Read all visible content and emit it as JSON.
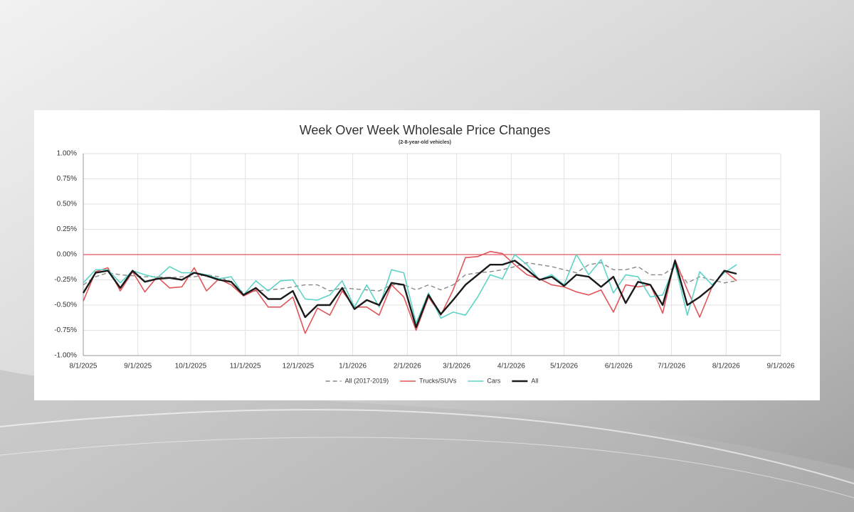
{
  "chart_data": {
    "type": "line",
    "title": "Week Over Week Wholesale Price Changes",
    "subtitle": "(2-8-year-old vehicles)",
    "x": [
      "8/1/2025",
      "8/8/2025",
      "8/15/2025",
      "8/22/2025",
      "8/29/2025",
      "9/5/2025",
      "9/12/2025",
      "9/19/2025",
      "9/26/2025",
      "10/3/2025",
      "10/10/2025",
      "10/17/2025",
      "10/24/2025",
      "10/31/2025",
      "11/7/2025",
      "11/14/2025",
      "11/21/2025",
      "11/28/2025",
      "12/5/2025",
      "12/12/2025",
      "12/19/2025",
      "12/26/2025",
      "1/2/2026",
      "1/9/2026",
      "1/16/2026",
      "1/23/2026",
      "1/30/2026",
      "2/6/2026",
      "2/13/2026",
      "2/20/2026",
      "2/27/2026",
      "3/6/2026",
      "3/13/2026",
      "3/20/2026",
      "3/27/2026",
      "4/3/2026",
      "4/10/2026",
      "4/17/2026",
      "4/24/2026",
      "5/1/2026",
      "5/8/2026",
      "5/15/2026",
      "5/22/2026",
      "5/29/2026",
      "6/5/2026",
      "6/12/2026",
      "6/19/2026",
      "6/26/2026",
      "7/3/2026",
      "7/10/2026",
      "7/17/2026",
      "7/24/2026",
      "7/31/2026",
      "8/7/2026"
    ],
    "series": [
      {
        "name": "All (2017-2019)",
        "color": "#888888",
        "style": "dashed",
        "values": [
          -0.3,
          -0.22,
          -0.18,
          -0.2,
          -0.21,
          -0.22,
          -0.22,
          -0.23,
          -0.22,
          -0.22,
          -0.2,
          -0.22,
          -0.27,
          -0.38,
          -0.36,
          -0.35,
          -0.34,
          -0.32,
          -0.3,
          -0.3,
          -0.36,
          -0.33,
          -0.34,
          -0.35,
          -0.36,
          -0.3,
          -0.3,
          -0.35,
          -0.3,
          -0.35,
          -0.3,
          -0.2,
          -0.18,
          -0.17,
          -0.15,
          -0.12,
          -0.08,
          -0.1,
          -0.12,
          -0.15,
          -0.18,
          -0.1,
          -0.08,
          -0.15,
          -0.15,
          -0.12,
          -0.2,
          -0.2,
          -0.12,
          -0.28,
          -0.22,
          -0.25,
          -0.28,
          -0.26
        ]
      },
      {
        "name": "Trucks/SUVs",
        "color": "#e0555a",
        "style": "solid",
        "values": [
          -0.46,
          -0.17,
          -0.13,
          -0.36,
          -0.17,
          -0.37,
          -0.22,
          -0.33,
          -0.32,
          -0.13,
          -0.36,
          -0.24,
          -0.3,
          -0.41,
          -0.35,
          -0.52,
          -0.52,
          -0.42,
          -0.78,
          -0.53,
          -0.6,
          -0.36,
          -0.52,
          -0.52,
          -0.6,
          -0.3,
          -0.42,
          -0.75,
          -0.42,
          -0.6,
          -0.35,
          -0.03,
          -0.02,
          0.03,
          0.01,
          -0.1,
          -0.2,
          -0.24,
          -0.3,
          -0.32,
          -0.37,
          -0.4,
          -0.35,
          -0.57,
          -0.3,
          -0.32,
          -0.3,
          -0.58,
          -0.05,
          -0.35,
          -0.62,
          -0.32,
          -0.16,
          -0.26
        ]
      },
      {
        "name": "Cars",
        "color": "#5fd3c6",
        "style": "solid",
        "values": [
          -0.28,
          -0.15,
          -0.15,
          -0.28,
          -0.16,
          -0.2,
          -0.23,
          -0.12,
          -0.18,
          -0.18,
          -0.2,
          -0.24,
          -0.22,
          -0.4,
          -0.26,
          -0.36,
          -0.26,
          -0.25,
          -0.44,
          -0.45,
          -0.4,
          -0.26,
          -0.52,
          -0.3,
          -0.52,
          -0.15,
          -0.18,
          -0.68,
          -0.38,
          -0.63,
          -0.57,
          -0.6,
          -0.42,
          -0.2,
          -0.24,
          0.0,
          -0.1,
          -0.25,
          -0.2,
          -0.3,
          0.0,
          -0.2,
          -0.05,
          -0.38,
          -0.2,
          -0.22,
          -0.42,
          -0.4,
          -0.1,
          -0.6,
          -0.17,
          -0.3,
          -0.18,
          -0.1
        ]
      },
      {
        "name": "All",
        "color": "#1a1a1a",
        "style": "bold",
        "values": [
          -0.38,
          -0.18,
          -0.16,
          -0.33,
          -0.16,
          -0.27,
          -0.24,
          -0.23,
          -0.25,
          -0.18,
          -0.21,
          -0.25,
          -0.27,
          -0.4,
          -0.33,
          -0.44,
          -0.44,
          -0.36,
          -0.62,
          -0.5,
          -0.5,
          -0.33,
          -0.54,
          -0.45,
          -0.5,
          -0.28,
          -0.3,
          -0.72,
          -0.4,
          -0.59,
          -0.45,
          -0.3,
          -0.2,
          -0.1,
          -0.1,
          -0.06,
          -0.15,
          -0.25,
          -0.22,
          -0.31,
          -0.2,
          -0.22,
          -0.32,
          -0.22,
          -0.48,
          -0.27,
          -0.3,
          -0.5,
          -0.06,
          -0.5,
          -0.42,
          -0.32,
          -0.16,
          -0.19
        ]
      }
    ],
    "xlim": [
      "8/1/2025",
      "9/1/2026"
    ],
    "xticks": [
      "8/1/2025",
      "9/1/2025",
      "10/1/2025",
      "11/1/2025",
      "12/1/2025",
      "1/1/2026",
      "2/1/2026",
      "3/1/2026",
      "4/1/2026",
      "5/1/2026",
      "6/1/2026",
      "7/1/2026",
      "8/1/2026",
      "9/1/2026"
    ],
    "ylim": [
      -1,
      1
    ],
    "yticks": [
      {
        "value": -1,
        "label": "-1.00%"
      },
      {
        "value": -0.75,
        "label": "-0.75%"
      },
      {
        "value": -0.5,
        "label": "-0.50%"
      },
      {
        "value": -0.25,
        "label": "-0.25%"
      },
      {
        "value": 0,
        "label": "0.00%"
      },
      {
        "value": 0.25,
        "label": "0.25%"
      },
      {
        "value": 0.5,
        "label": "0.50%"
      },
      {
        "value": 0.75,
        "label": "0.75%"
      },
      {
        "value": 1,
        "label": "1.00%"
      }
    ],
    "reference_lines": [
      {
        "y": 0,
        "color": "#e0555a"
      }
    ],
    "grid": true,
    "legend": "bottom"
  }
}
